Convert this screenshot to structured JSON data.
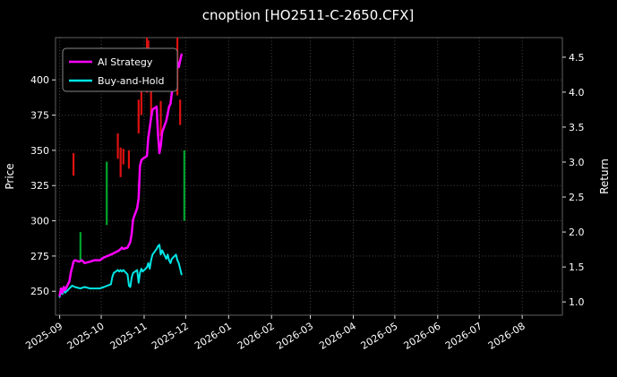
{
  "chart_data": {
    "type": "line",
    "title": "cnoption [HO2511-C-2650.CFX]",
    "background_color": "#000000",
    "text_color": "#ffffff",
    "grid": {
      "visible": true,
      "style": "dotted",
      "color": "#4d4d4d"
    },
    "left_axis": {
      "label": "Price",
      "ticks": [
        250,
        275,
        300,
        325,
        350,
        375,
        400
      ],
      "range": [
        233,
        430
      ]
    },
    "right_axis": {
      "label": "Return",
      "ticks": [
        1.0,
        1.5,
        2.0,
        2.5,
        3.0,
        3.5,
        4.0,
        4.5
      ],
      "range": [
        0.81,
        4.78
      ]
    },
    "x_axis": {
      "tick_labels": [
        "2025-09",
        "2025-10",
        "2025-11",
        "2025-12",
        "2026-01",
        "2026-02",
        "2026-03",
        "2026-04",
        "2026-05",
        "2026-06",
        "2026-07",
        "2026-08"
      ],
      "range": [
        "2025-08-29",
        "2026-08-30"
      ],
      "tick_rotation_deg": 32
    },
    "legend": {
      "position": "upper-left",
      "entries": [
        {
          "name": "AI Strategy",
          "color": "#ff00ff"
        },
        {
          "name": "Buy-and-Hold",
          "color": "#00e6e6"
        }
      ]
    },
    "series": [
      {
        "name": "AI Strategy",
        "color": "#ff00ff",
        "width": 2.5,
        "points": [
          [
            "2025-09-01",
            247
          ],
          [
            "2025-09-02",
            252
          ],
          [
            "2025-09-03",
            249
          ],
          [
            "2025-09-04",
            253
          ],
          [
            "2025-09-05",
            251
          ],
          [
            "2025-09-08",
            257
          ],
          [
            "2025-09-09",
            263
          ],
          [
            "2025-09-10",
            267
          ],
          [
            "2025-09-11",
            271
          ],
          [
            "2025-09-12",
            272
          ],
          [
            "2025-09-15",
            271
          ],
          [
            "2025-09-17",
            272
          ],
          [
            "2025-09-19",
            270
          ],
          [
            "2025-09-23",
            271
          ],
          [
            "2025-09-26",
            272
          ],
          [
            "2025-09-30",
            272
          ],
          [
            "2025-10-03",
            274
          ],
          [
            "2025-10-08",
            276
          ],
          [
            "2025-10-10",
            277
          ],
          [
            "2025-10-14",
            279
          ],
          [
            "2025-10-16",
            281
          ],
          [
            "2025-10-17",
            280
          ],
          [
            "2025-10-20",
            281
          ],
          [
            "2025-10-21",
            283
          ],
          [
            "2025-10-22",
            285
          ],
          [
            "2025-10-23",
            291
          ],
          [
            "2025-10-24",
            301
          ],
          [
            "2025-10-27",
            309
          ],
          [
            "2025-10-28",
            316
          ],
          [
            "2025-10-29",
            339
          ],
          [
            "2025-10-30",
            343
          ],
          [
            "2025-10-31",
            344
          ],
          [
            "2025-11-03",
            346
          ],
          [
            "2025-11-04",
            359
          ],
          [
            "2025-11-05",
            366
          ],
          [
            "2025-11-06",
            373
          ],
          [
            "2025-11-07",
            379
          ],
          [
            "2025-11-10",
            381
          ],
          [
            "2025-11-11",
            362
          ],
          [
            "2025-11-12",
            348
          ],
          [
            "2025-11-13",
            353
          ],
          [
            "2025-11-14",
            363
          ],
          [
            "2025-11-17",
            371
          ],
          [
            "2025-11-18",
            376
          ],
          [
            "2025-11-19",
            381
          ],
          [
            "2025-11-20",
            383
          ],
          [
            "2025-11-21",
            391
          ],
          [
            "2025-11-24",
            403
          ],
          [
            "2025-11-25",
            413
          ],
          [
            "2025-11-26",
            409
          ],
          [
            "2025-11-28",
            418
          ]
        ]
      },
      {
        "name": "Buy-and-Hold",
        "color": "#00e6e6",
        "width": 2,
        "points": [
          [
            "2025-09-01",
            246
          ],
          [
            "2025-09-02",
            250
          ],
          [
            "2025-09-03",
            248
          ],
          [
            "2025-09-04",
            251
          ],
          [
            "2025-09-05",
            249
          ],
          [
            "2025-09-08",
            252
          ],
          [
            "2025-09-10",
            254
          ],
          [
            "2025-09-12",
            253
          ],
          [
            "2025-09-16",
            252
          ],
          [
            "2025-09-19",
            253
          ],
          [
            "2025-09-23",
            252
          ],
          [
            "2025-09-30",
            252
          ],
          [
            "2025-10-03",
            253
          ],
          [
            "2025-10-08",
            255
          ],
          [
            "2025-10-09",
            260
          ],
          [
            "2025-10-10",
            263
          ],
          [
            "2025-10-13",
            265
          ],
          [
            "2025-10-14",
            264
          ],
          [
            "2025-10-15",
            265
          ],
          [
            "2025-10-16",
            264
          ],
          [
            "2025-10-17",
            265
          ],
          [
            "2025-10-20",
            262
          ],
          [
            "2025-10-21",
            254
          ],
          [
            "2025-10-22",
            253
          ],
          [
            "2025-10-23",
            260
          ],
          [
            "2025-10-24",
            263
          ],
          [
            "2025-10-27",
            265
          ],
          [
            "2025-10-28",
            256
          ],
          [
            "2025-10-29",
            263
          ],
          [
            "2025-10-30",
            266
          ],
          [
            "2025-10-31",
            264
          ],
          [
            "2025-11-03",
            267
          ],
          [
            "2025-11-04",
            270
          ],
          [
            "2025-11-05",
            266
          ],
          [
            "2025-11-06",
            272
          ],
          [
            "2025-11-07",
            276
          ],
          [
            "2025-11-10",
            280
          ],
          [
            "2025-11-11",
            282
          ],
          [
            "2025-11-12",
            283
          ],
          [
            "2025-11-13",
            276
          ],
          [
            "2025-11-14",
            279
          ],
          [
            "2025-11-17",
            273
          ],
          [
            "2025-11-18",
            276
          ],
          [
            "2025-11-19",
            272
          ],
          [
            "2025-11-20",
            270
          ],
          [
            "2025-11-21",
            273
          ],
          [
            "2025-11-24",
            276
          ],
          [
            "2025-11-25",
            272
          ],
          [
            "2025-11-26",
            270
          ],
          [
            "2025-11-28",
            262
          ]
        ]
      }
    ],
    "candle_colors": {
      "red": "#dd1111",
      "green": "#00a52c"
    },
    "candles": [
      {
        "date": "2025-09-11",
        "low": 332,
        "high": 348,
        "color": "red"
      },
      {
        "date": "2025-09-16",
        "low": 272,
        "high": 292,
        "color": "green"
      },
      {
        "date": "2025-10-05",
        "low": 297,
        "high": 342,
        "color": "green"
      },
      {
        "date": "2025-10-13",
        "low": 344,
        "high": 362,
        "color": "red"
      },
      {
        "date": "2025-10-15",
        "low": 331,
        "high": 352,
        "color": "red"
      },
      {
        "date": "2025-10-17",
        "low": 340,
        "high": 351,
        "color": "red"
      },
      {
        "date": "2025-10-21",
        "low": 337,
        "high": 350,
        "color": "red"
      },
      {
        "date": "2025-10-28",
        "low": 362,
        "high": 386,
        "color": "red"
      },
      {
        "date": "2025-10-30",
        "low": 375,
        "high": 415,
        "color": "red"
      },
      {
        "date": "2025-11-03",
        "low": 391,
        "high": 430,
        "color": "red"
      },
      {
        "date": "2025-11-04",
        "low": 406,
        "high": 428,
        "color": "red"
      },
      {
        "date": "2025-11-06",
        "low": 372,
        "high": 398,
        "color": "red"
      },
      {
        "date": "2025-11-13",
        "low": 360,
        "high": 385,
        "color": "red"
      },
      {
        "date": "2025-11-25",
        "low": 389,
        "high": 430,
        "color": "red"
      },
      {
        "date": "2025-11-27",
        "low": 368,
        "high": 386,
        "color": "red"
      },
      {
        "date": "2025-11-30",
        "low": 300,
        "high": 350,
        "color": "green"
      }
    ]
  }
}
